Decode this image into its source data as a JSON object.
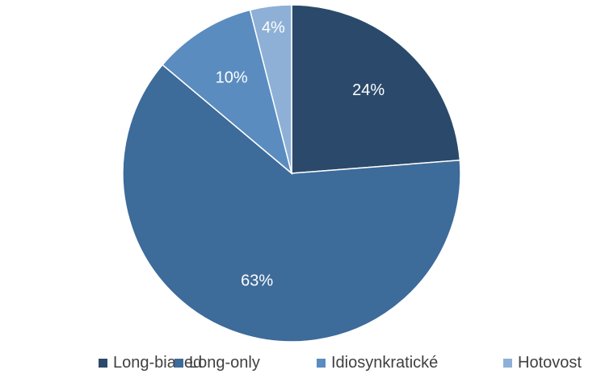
{
  "chart_data": {
    "type": "pie",
    "categories": [
      "Long-biased",
      "Long-only",
      "Idiosynkratické",
      "Hotovost"
    ],
    "values": [
      24,
      63,
      10,
      4
    ],
    "data_labels": [
      "24%",
      "63%",
      "10%",
      "4%"
    ],
    "colors": [
      "#2b4a6b",
      "#3d6b9a",
      "#5a8cc0",
      "#8eb0d6"
    ],
    "start_angle_deg": 0,
    "direction": "clockwise",
    "legend_position": "bottom"
  },
  "legend": {
    "items": [
      {
        "label": "Long-biased",
        "color": "#2b4a6b"
      },
      {
        "label": "Long-only",
        "color": "#3d6b9a"
      },
      {
        "label": "Idiosynkratické",
        "color": "#5a8cc0"
      },
      {
        "label": "Hotovost",
        "color": "#8eb0d6"
      }
    ]
  }
}
